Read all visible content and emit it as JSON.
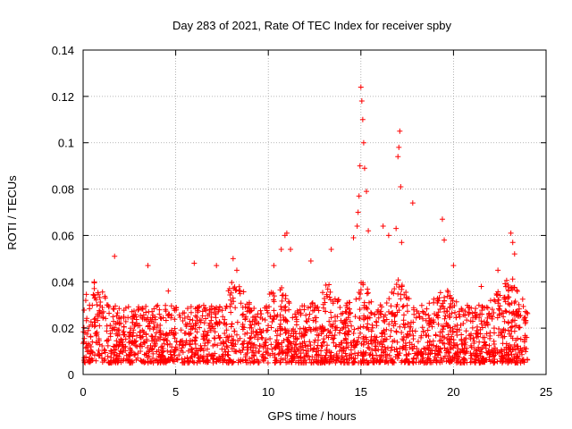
{
  "chart_data": {
    "type": "scatter",
    "title": "Day 283 of 2021, Rate Of TEC Index for receiver spby",
    "xlabel": "GPS time / hours",
    "ylabel": "ROTI / TECUs",
    "xlim": [
      0,
      25
    ],
    "ylim": [
      0,
      0.14
    ],
    "x_ticks": [
      0,
      5,
      10,
      15,
      20,
      25
    ],
    "x_tick_labels": [
      "0",
      "5",
      "10",
      "15",
      "20",
      "25"
    ],
    "y_ticks": [
      0,
      0.02,
      0.04,
      0.06,
      0.08,
      0.1,
      0.12,
      0.14
    ],
    "y_tick_labels": [
      "0",
      "0.02",
      "0.04",
      "0.06",
      "0.08",
      "0.1",
      "0.12",
      "0.14"
    ],
    "grid": true,
    "marker": "+",
    "color": "#ff0000",
    "series": [
      {
        "name": "ROTI",
        "baseline_range": [
          0.005,
          0.03
        ],
        "notable_points": [
          {
            "x": 0.6,
            "y": 0.04
          },
          {
            "x": 1.7,
            "y": 0.051
          },
          {
            "x": 3.5,
            "y": 0.047
          },
          {
            "x": 4.6,
            "y": 0.036
          },
          {
            "x": 6.0,
            "y": 0.048
          },
          {
            "x": 7.2,
            "y": 0.047
          },
          {
            "x": 8.1,
            "y": 0.05
          },
          {
            "x": 8.3,
            "y": 0.045
          },
          {
            "x": 10.3,
            "y": 0.047
          },
          {
            "x": 10.7,
            "y": 0.054
          },
          {
            "x": 10.9,
            "y": 0.06
          },
          {
            "x": 11.0,
            "y": 0.061
          },
          {
            "x": 11.2,
            "y": 0.054
          },
          {
            "x": 12.3,
            "y": 0.049
          },
          {
            "x": 13.4,
            "y": 0.054
          },
          {
            "x": 14.6,
            "y": 0.059
          },
          {
            "x": 14.8,
            "y": 0.064
          },
          {
            "x": 14.85,
            "y": 0.07
          },
          {
            "x": 14.9,
            "y": 0.077
          },
          {
            "x": 14.95,
            "y": 0.09
          },
          {
            "x": 15.0,
            "y": 0.124
          },
          {
            "x": 15.05,
            "y": 0.118
          },
          {
            "x": 15.1,
            "y": 0.11
          },
          {
            "x": 15.15,
            "y": 0.1
          },
          {
            "x": 15.2,
            "y": 0.089
          },
          {
            "x": 15.3,
            "y": 0.079
          },
          {
            "x": 15.4,
            "y": 0.062
          },
          {
            "x": 16.2,
            "y": 0.064
          },
          {
            "x": 16.5,
            "y": 0.06
          },
          {
            "x": 16.9,
            "y": 0.063
          },
          {
            "x": 17.0,
            "y": 0.094
          },
          {
            "x": 17.05,
            "y": 0.098
          },
          {
            "x": 17.1,
            "y": 0.105
          },
          {
            "x": 17.15,
            "y": 0.081
          },
          {
            "x": 17.2,
            "y": 0.057
          },
          {
            "x": 17.8,
            "y": 0.074
          },
          {
            "x": 19.4,
            "y": 0.067
          },
          {
            "x": 19.5,
            "y": 0.058
          },
          {
            "x": 20.0,
            "y": 0.047
          },
          {
            "x": 21.5,
            "y": 0.038
          },
          {
            "x": 22.4,
            "y": 0.045
          },
          {
            "x": 23.1,
            "y": 0.061
          },
          {
            "x": 23.2,
            "y": 0.057
          },
          {
            "x": 23.3,
            "y": 0.052
          }
        ]
      }
    ]
  }
}
